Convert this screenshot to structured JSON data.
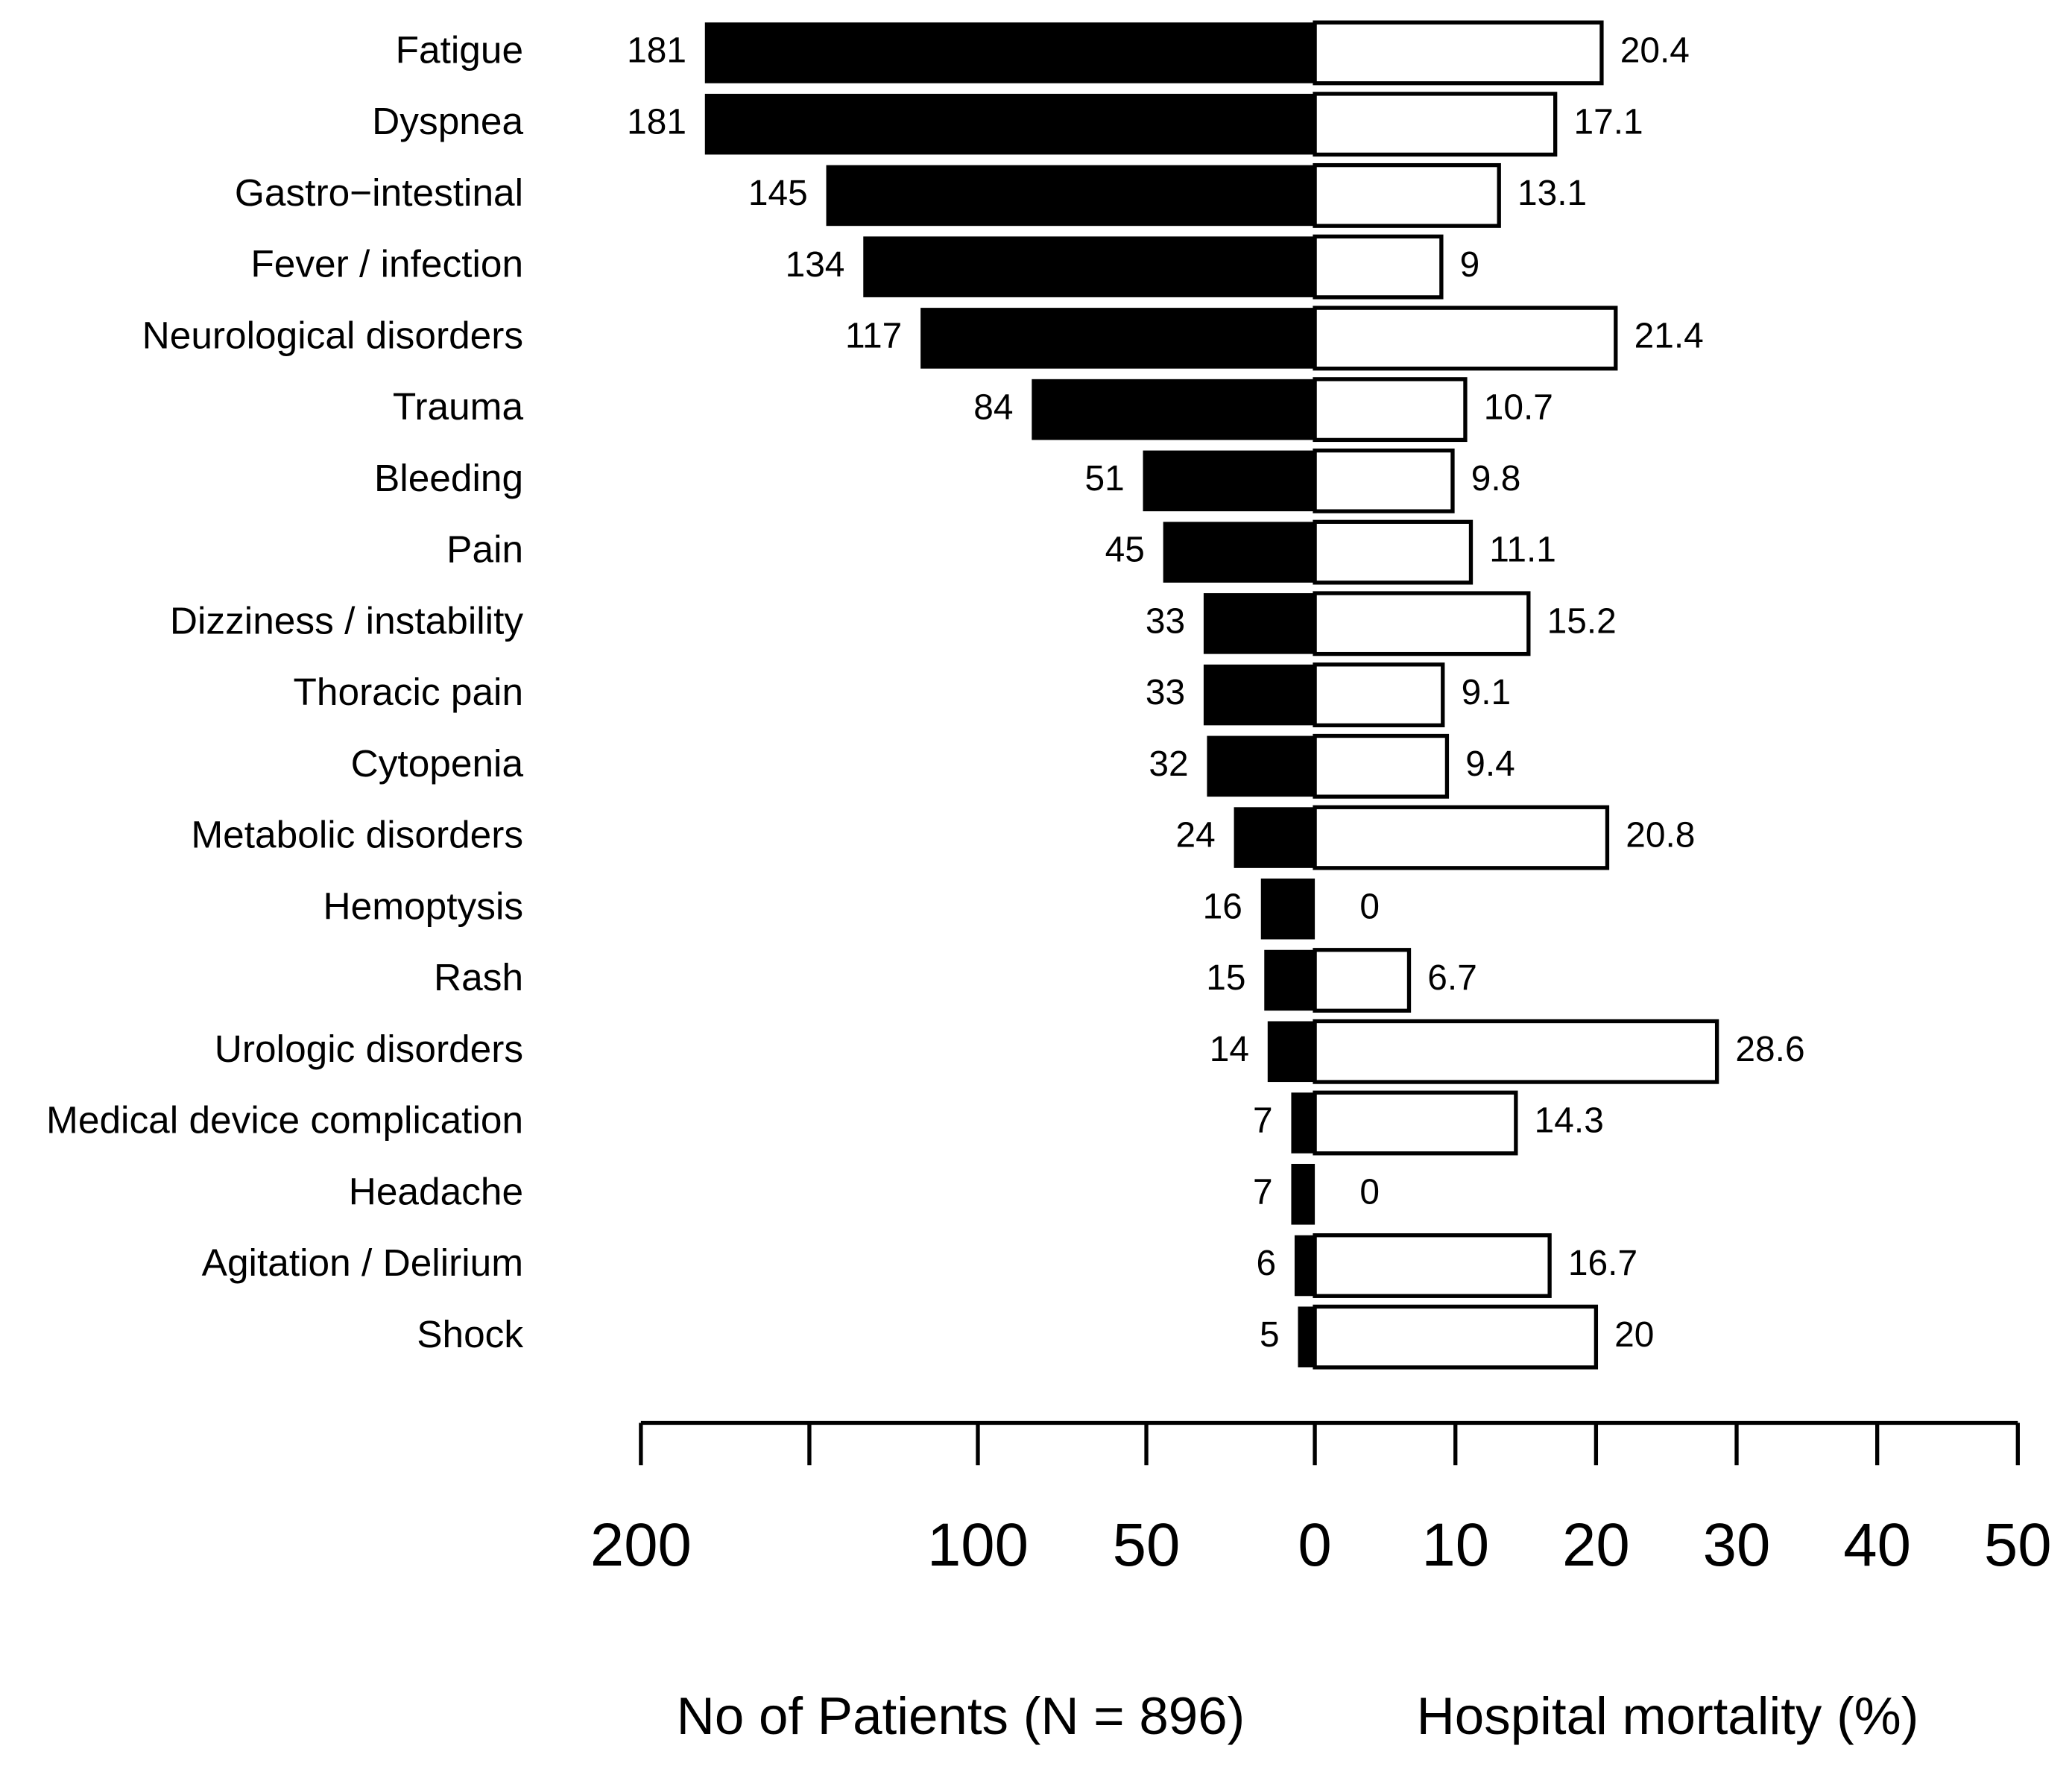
{
  "chart_data": {
    "type": "butterfly",
    "categories": [
      "Fatigue",
      "Dyspnea",
      "Gastro−intestinal",
      "Fever / infection",
      "Neurological disorders",
      "Trauma",
      "Bleeding",
      "Pain",
      "Dizziness / instability",
      "Thoracic pain",
      "Cytopenia",
      "Metabolic disorders",
      "Hemoptysis",
      "Rash",
      "Urologic disorders",
      "Medical device complication",
      "Headache",
      "Agitation / Delirium",
      "Shock"
    ],
    "series": [
      {
        "name": "No of Patients (N = 896)",
        "color": "#000000",
        "side": "left",
        "values": [
          181,
          181,
          145,
          134,
          117,
          84,
          51,
          45,
          33,
          33,
          32,
          24,
          16,
          15,
          14,
          7,
          7,
          6,
          5
        ],
        "xlim": [
          0,
          200
        ],
        "xticks": [
          200,
          {
            "value": 150,
            "label": null
          },
          100,
          50,
          0
        ]
      },
      {
        "name": "Hospital mortality (%)",
        "color": "#ffffff",
        "side": "right",
        "values": [
          20.4,
          17.1,
          13.1,
          9,
          21.4,
          10.7,
          9.8,
          11.1,
          15.2,
          9.1,
          9.4,
          20.8,
          0,
          6.7,
          28.6,
          14.3,
          0,
          16.7,
          20
        ],
        "xlim": [
          0,
          50
        ],
        "xticks": [
          10,
          20,
          30,
          40,
          50
        ]
      }
    ]
  }
}
